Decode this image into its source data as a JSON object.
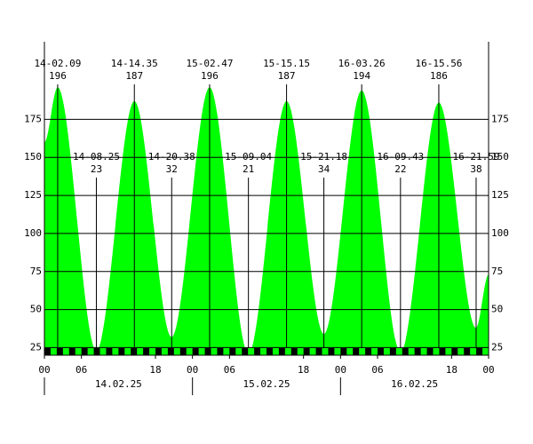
{
  "chart_data": {
    "type": "area",
    "x": [
      0,
      2.15,
      8.42,
      14.58,
      20.63,
      26.78,
      33.07,
      39.25,
      45.3,
      51.43,
      57.72,
      63.93,
      69.98,
      72
    ],
    "values": [
      160,
      196,
      23,
      187,
      32,
      196,
      21,
      187,
      34,
      194,
      22,
      186,
      38,
      73
    ],
    "point_labels": [
      null,
      "14-02.09",
      "14-08.25",
      "14-14.35",
      "14-20.38",
      "15-02.47",
      "15-09.04",
      "15-15.15",
      "15-21.18",
      "16-03.26",
      "16-09.43",
      "16-15.56",
      "16-21.59",
      null
    ],
    "color": "#00ff00",
    "xlim": [
      0,
      72
    ],
    "ylim": [
      20,
      226
    ],
    "yticks": [
      25,
      50,
      75,
      100,
      125,
      150,
      175
    ],
    "xticks": [
      {
        "value": 0,
        "label": "00"
      },
      {
        "value": 6,
        "label": "06"
      },
      {
        "value": 18,
        "label": "18"
      },
      {
        "value": 24,
        "label": "00"
      },
      {
        "value": 30,
        "label": "06"
      },
      {
        "value": 42,
        "label": "18"
      },
      {
        "value": 48,
        "label": "00"
      },
      {
        "value": 54,
        "label": "06"
      },
      {
        "value": 66,
        "label": "18"
      },
      {
        "value": 72,
        "label": "00"
      }
    ],
    "x_groups": [
      {
        "start": 0,
        "end": 24,
        "label": "14.02.25"
      },
      {
        "start": 24,
        "end": 48,
        "label": "15.02.25"
      },
      {
        "start": 48,
        "end": 72,
        "label": "16.02.25"
      }
    ],
    "grid": true
  }
}
